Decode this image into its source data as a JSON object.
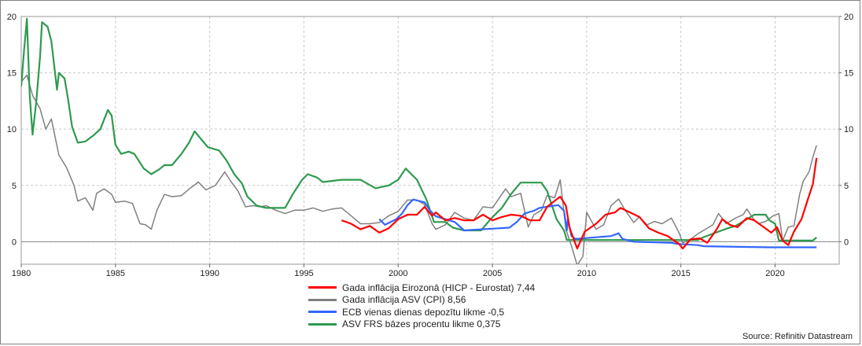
{
  "chart_data": {
    "type": "line",
    "xlim": [
      1980,
      2023.4
    ],
    "ylim": [
      -2,
      20
    ],
    "grid": true,
    "x_ticks": [
      "1980",
      "1985",
      "1990",
      "1995",
      "2000",
      "2005",
      "2010",
      "2015",
      "2020"
    ],
    "y_ticks": [
      "0",
      "5",
      "10",
      "15",
      "20"
    ],
    "series": [
      {
        "name": "Gada inflācija Eirozonā (HICP - Eurostat) 7,44",
        "color": "#ff0000",
        "points": [
          [
            1997.0,
            1.9
          ],
          [
            1997.5,
            1.6
          ],
          [
            1998.0,
            1.1
          ],
          [
            1998.5,
            1.4
          ],
          [
            1999.0,
            0.8
          ],
          [
            1999.5,
            1.2
          ],
          [
            2000.0,
            2.0
          ],
          [
            2000.5,
            2.4
          ],
          [
            2001.0,
            2.4
          ],
          [
            2001.4,
            3.1
          ],
          [
            2001.8,
            2.3
          ],
          [
            2002.0,
            2.6
          ],
          [
            2002.5,
            1.9
          ],
          [
            2003.0,
            2.1
          ],
          [
            2003.5,
            1.9
          ],
          [
            2004.0,
            1.9
          ],
          [
            2004.5,
            2.4
          ],
          [
            2005.0,
            1.9
          ],
          [
            2005.5,
            2.2
          ],
          [
            2006.0,
            2.4
          ],
          [
            2006.5,
            2.3
          ],
          [
            2007.0,
            1.9
          ],
          [
            2007.5,
            1.9
          ],
          [
            2007.9,
            3.1
          ],
          [
            2008.2,
            3.5
          ],
          [
            2008.6,
            4.0
          ],
          [
            2008.9,
            3.2
          ],
          [
            2009.1,
            1.2
          ],
          [
            2009.5,
            -0.6
          ],
          [
            2009.9,
            0.9
          ],
          [
            2010.5,
            1.6
          ],
          [
            2011.0,
            2.4
          ],
          [
            2011.5,
            2.6
          ],
          [
            2011.8,
            3.0
          ],
          [
            2012.3,
            2.6
          ],
          [
            2012.8,
            2.2
          ],
          [
            2013.3,
            1.2
          ],
          [
            2013.8,
            0.8
          ],
          [
            2014.3,
            0.5
          ],
          [
            2014.9,
            -0.2
          ],
          [
            2015.1,
            -0.6
          ],
          [
            2015.5,
            0.2
          ],
          [
            2016.0,
            0.3
          ],
          [
            2016.4,
            -0.1
          ],
          [
            2016.9,
            1.1
          ],
          [
            2017.2,
            2.0
          ],
          [
            2017.6,
            1.5
          ],
          [
            2018.0,
            1.3
          ],
          [
            2018.5,
            2.1
          ],
          [
            2018.9,
            1.9
          ],
          [
            2019.3,
            1.4
          ],
          [
            2019.8,
            0.8
          ],
          [
            2020.1,
            1.3
          ],
          [
            2020.4,
            0.1
          ],
          [
            2020.7,
            -0.3
          ],
          [
            2021.0,
            0.9
          ],
          [
            2021.4,
            2.0
          ],
          [
            2021.8,
            4.1
          ],
          [
            2022.0,
            5.1
          ],
          [
            2022.2,
            7.44
          ]
        ]
      },
      {
        "name": "Gada inflācija ASV (CPI) 8,56",
        "color": "#808080",
        "points": [
          [
            1980.0,
            14.2
          ],
          [
            1980.3,
            14.8
          ],
          [
            1980.6,
            13.0
          ],
          [
            1981.0,
            11.8
          ],
          [
            1981.3,
            10.0
          ],
          [
            1981.6,
            10.9
          ],
          [
            1982.0,
            7.7
          ],
          [
            1982.4,
            6.6
          ],
          [
            1982.8,
            5.0
          ],
          [
            1983.0,
            3.6
          ],
          [
            1983.4,
            3.9
          ],
          [
            1983.8,
            2.8
          ],
          [
            1984.0,
            4.3
          ],
          [
            1984.4,
            4.7
          ],
          [
            1984.8,
            4.2
          ],
          [
            1985.0,
            3.5
          ],
          [
            1985.5,
            3.6
          ],
          [
            1985.9,
            3.4
          ],
          [
            1986.3,
            1.6
          ],
          [
            1986.6,
            1.5
          ],
          [
            1986.9,
            1.1
          ],
          [
            1987.2,
            2.8
          ],
          [
            1987.6,
            4.2
          ],
          [
            1988.0,
            4.0
          ],
          [
            1988.5,
            4.1
          ],
          [
            1989.0,
            4.8
          ],
          [
            1989.4,
            5.3
          ],
          [
            1989.8,
            4.6
          ],
          [
            1990.3,
            5.0
          ],
          [
            1990.8,
            6.2
          ],
          [
            1991.1,
            5.4
          ],
          [
            1991.5,
            4.5
          ],
          [
            1991.9,
            3.1
          ],
          [
            1992.3,
            3.2
          ],
          [
            1992.7,
            3.1
          ],
          [
            1993.0,
            3.2
          ],
          [
            1993.5,
            2.8
          ],
          [
            1994.0,
            2.5
          ],
          [
            1994.5,
            2.8
          ],
          [
            1995.0,
            2.8
          ],
          [
            1995.5,
            3.0
          ],
          [
            1996.0,
            2.7
          ],
          [
            1996.5,
            2.9
          ],
          [
            1997.0,
            3.0
          ],
          [
            1997.5,
            2.3
          ],
          [
            1998.0,
            1.6
          ],
          [
            1998.5,
            1.6
          ],
          [
            1999.0,
            1.7
          ],
          [
            1999.5,
            2.3
          ],
          [
            2000.0,
            2.7
          ],
          [
            2000.5,
            3.7
          ],
          [
            2001.0,
            3.7
          ],
          [
            2001.4,
            3.3
          ],
          [
            2001.8,
            1.6
          ],
          [
            2002.0,
            1.1
          ],
          [
            2002.5,
            1.5
          ],
          [
            2003.0,
            2.6
          ],
          [
            2003.5,
            2.1
          ],
          [
            2004.0,
            1.9
          ],
          [
            2004.5,
            3.1
          ],
          [
            2005.0,
            3.0
          ],
          [
            2005.7,
            4.7
          ],
          [
            2006.0,
            4.0
          ],
          [
            2006.5,
            4.3
          ],
          [
            2006.9,
            1.3
          ],
          [
            2007.2,
            2.4
          ],
          [
            2007.6,
            2.8
          ],
          [
            2007.9,
            4.1
          ],
          [
            2008.3,
            3.9
          ],
          [
            2008.6,
            5.5
          ],
          [
            2008.9,
            1.1
          ],
          [
            2009.2,
            -0.4
          ],
          [
            2009.5,
            -2.1
          ],
          [
            2009.8,
            -1.3
          ],
          [
            2010.0,
            2.6
          ],
          [
            2010.5,
            1.1
          ],
          [
            2010.9,
            1.5
          ],
          [
            2011.3,
            3.2
          ],
          [
            2011.7,
            3.8
          ],
          [
            2012.0,
            2.9
          ],
          [
            2012.5,
            1.7
          ],
          [
            2012.8,
            2.2
          ],
          [
            2013.2,
            1.5
          ],
          [
            2013.6,
            1.8
          ],
          [
            2014.0,
            1.6
          ],
          [
            2014.5,
            2.1
          ],
          [
            2014.9,
            0.8
          ],
          [
            2015.1,
            -0.1
          ],
          [
            2015.5,
            0.2
          ],
          [
            2015.9,
            0.7
          ],
          [
            2016.3,
            1.1
          ],
          [
            2016.7,
            1.5
          ],
          [
            2017.0,
            2.5
          ],
          [
            2017.4,
            1.6
          ],
          [
            2017.9,
            2.1
          ],
          [
            2018.3,
            2.4
          ],
          [
            2018.5,
            2.9
          ],
          [
            2018.9,
            1.9
          ],
          [
            2019.1,
            1.6
          ],
          [
            2019.5,
            1.8
          ],
          [
            2019.9,
            2.3
          ],
          [
            2020.2,
            2.5
          ],
          [
            2020.4,
            0.1
          ],
          [
            2020.7,
            1.3
          ],
          [
            2021.0,
            1.4
          ],
          [
            2021.3,
            4.2
          ],
          [
            2021.5,
            5.4
          ],
          [
            2021.8,
            6.2
          ],
          [
            2022.0,
            7.5
          ],
          [
            2022.2,
            8.56
          ]
        ]
      },
      {
        "name": "ECB vienas dienas depozītu likme -0,5",
        "color": "#3366ff",
        "points": [
          [
            1999.0,
            2.0
          ],
          [
            1999.3,
            1.5
          ],
          [
            1999.9,
            2.0
          ],
          [
            2000.2,
            2.5
          ],
          [
            2000.5,
            3.25
          ],
          [
            2000.8,
            3.75
          ],
          [
            2001.4,
            3.5
          ],
          [
            2001.7,
            2.75
          ],
          [
            2002.0,
            2.25
          ],
          [
            2003.0,
            1.75
          ],
          [
            2003.5,
            1.0
          ],
          [
            2005.9,
            1.25
          ],
          [
            2006.3,
            1.75
          ],
          [
            2006.7,
            2.5
          ],
          [
            2007.2,
            2.75
          ],
          [
            2007.5,
            3.0
          ],
          [
            2008.5,
            3.25
          ],
          [
            2008.8,
            2.75
          ],
          [
            2008.95,
            1.0
          ],
          [
            2009.0,
            2.0
          ],
          [
            2009.2,
            0.5
          ],
          [
            2009.4,
            0.25
          ],
          [
            2011.3,
            0.5
          ],
          [
            2011.7,
            0.75
          ],
          [
            2011.9,
            0.25
          ],
          [
            2012.5,
            0.0
          ],
          [
            2014.5,
            -0.1
          ],
          [
            2014.8,
            -0.2
          ],
          [
            2015.9,
            -0.3
          ],
          [
            2016.2,
            -0.4
          ],
          [
            2019.7,
            -0.5
          ],
          [
            2022.2,
            -0.5
          ]
        ]
      },
      {
        "name": "ASV FRS bāzes procentu likme 0,375",
        "color": "#2e9a4e",
        "points": [
          [
            1980.0,
            13.8
          ],
          [
            1980.15,
            17.0
          ],
          [
            1980.3,
            19.8
          ],
          [
            1980.45,
            13.0
          ],
          [
            1980.6,
            9.5
          ],
          [
            1980.8,
            12.5
          ],
          [
            1981.0,
            16.5
          ],
          [
            1981.1,
            19.5
          ],
          [
            1981.4,
            19.1
          ],
          [
            1981.6,
            17.8
          ],
          [
            1981.9,
            13.5
          ],
          [
            1982.0,
            15.0
          ],
          [
            1982.3,
            14.5
          ],
          [
            1982.5,
            12.5
          ],
          [
            1982.7,
            10.2
          ],
          [
            1983.0,
            8.8
          ],
          [
            1983.4,
            8.9
          ],
          [
            1983.8,
            9.4
          ],
          [
            1984.2,
            10.0
          ],
          [
            1984.6,
            11.7
          ],
          [
            1984.8,
            11.2
          ],
          [
            1985.0,
            8.6
          ],
          [
            1985.3,
            7.8
          ],
          [
            1985.7,
            8.0
          ],
          [
            1986.0,
            7.8
          ],
          [
            1986.5,
            6.5
          ],
          [
            1986.9,
            6.0
          ],
          [
            1987.3,
            6.4
          ],
          [
            1987.6,
            6.8
          ],
          [
            1988.0,
            6.8
          ],
          [
            1988.5,
            7.8
          ],
          [
            1988.9,
            8.8
          ],
          [
            1989.2,
            9.8
          ],
          [
            1989.6,
            9.0
          ],
          [
            1989.9,
            8.4
          ],
          [
            1990.5,
            8.1
          ],
          [
            1990.9,
            7.2
          ],
          [
            1991.3,
            6.0
          ],
          [
            1991.7,
            5.2
          ],
          [
            1992.0,
            4.0
          ],
          [
            1992.5,
            3.2
          ],
          [
            1993.0,
            3.0
          ],
          [
            1994.0,
            3.0
          ],
          [
            1994.4,
            4.2
          ],
          [
            1994.9,
            5.5
          ],
          [
            1995.2,
            6.0
          ],
          [
            1995.7,
            5.7
          ],
          [
            1996.0,
            5.3
          ],
          [
            1997.0,
            5.5
          ],
          [
            1998.0,
            5.5
          ],
          [
            1998.8,
            4.75
          ],
          [
            1999.5,
            5.0
          ],
          [
            2000.0,
            5.5
          ],
          [
            2000.4,
            6.5
          ],
          [
            2001.0,
            5.5
          ],
          [
            2001.5,
            3.75
          ],
          [
            2001.9,
            1.75
          ],
          [
            2002.5,
            1.75
          ],
          [
            2002.9,
            1.25
          ],
          [
            2003.5,
            1.0
          ],
          [
            2004.4,
            1.0
          ],
          [
            2004.9,
            2.0
          ],
          [
            2005.5,
            3.0
          ],
          [
            2006.0,
            4.25
          ],
          [
            2006.5,
            5.25
          ],
          [
            2007.6,
            5.25
          ],
          [
            2007.9,
            4.5
          ],
          [
            2008.2,
            3.0
          ],
          [
            2008.4,
            2.0
          ],
          [
            2008.8,
            1.0
          ],
          [
            2008.95,
            0.15
          ],
          [
            2015.9,
            0.15
          ],
          [
            2016.2,
            0.4
          ],
          [
            2017.0,
            0.9
          ],
          [
            2017.5,
            1.2
          ],
          [
            2017.9,
            1.4
          ],
          [
            2018.4,
            1.9
          ],
          [
            2018.9,
            2.4
          ],
          [
            2019.5,
            2.4
          ],
          [
            2019.7,
            1.9
          ],
          [
            2020.0,
            1.6
          ],
          [
            2020.2,
            0.1
          ],
          [
            2022.0,
            0.1
          ],
          [
            2022.2,
            0.375
          ]
        ]
      }
    ]
  },
  "source": "Source: Refinitiv Datastream"
}
